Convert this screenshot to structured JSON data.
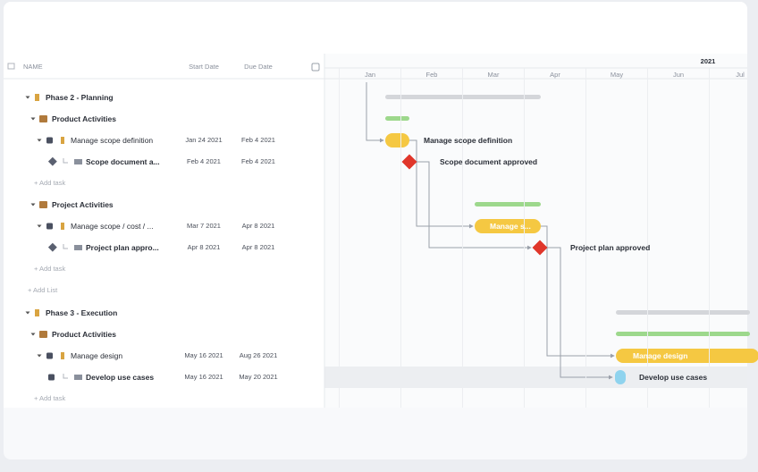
{
  "header": {
    "columns": [
      "NAME",
      "Start Date",
      "Due Date"
    ]
  },
  "phases": [
    {
      "name": "Phase 2 - Planning",
      "lists": [
        {
          "name": "Product Activities",
          "tasks": [
            {
              "name": "Manage scope definition",
              "start": "Jan 24 2021",
              "due": "Feb 4 2021"
            },
            {
              "name": "Scope document a...",
              "start": "Feb 4 2021",
              "due": "Feb 4 2021"
            }
          ],
          "add": "+ Add task"
        },
        {
          "name": "Project Activities",
          "tasks": [
            {
              "name": "Manage scope / cost / ...",
              "start": "Mar 7 2021",
              "due": "Apr 8 2021"
            },
            {
              "name": "Project plan appro...",
              "start": "Apr 8 2021",
              "due": "Apr 8 2021"
            }
          ],
          "add": "+ Add task"
        }
      ],
      "add_list": "+ Add List"
    },
    {
      "name": "Phase 3 - Execution",
      "lists": [
        {
          "name": "Product Activities",
          "tasks": [
            {
              "name": "Manage design",
              "start": "May 16 2021",
              "due": "Aug 26 2021"
            },
            {
              "name": "Develop use cases",
              "start": "May 16 2021",
              "due": "May 20 2021"
            }
          ],
          "add": "+ Add task"
        }
      ]
    }
  ],
  "timeline": {
    "year": "2021",
    "months": [
      "Jan",
      "Feb",
      "Mar",
      "Apr",
      "May",
      "Jun",
      "Jul"
    ],
    "labels": [
      "Manage scope definition",
      "Scope document approved",
      "Manage s...",
      "Project plan approved",
      "Manage design",
      "Develop use cases"
    ]
  }
}
